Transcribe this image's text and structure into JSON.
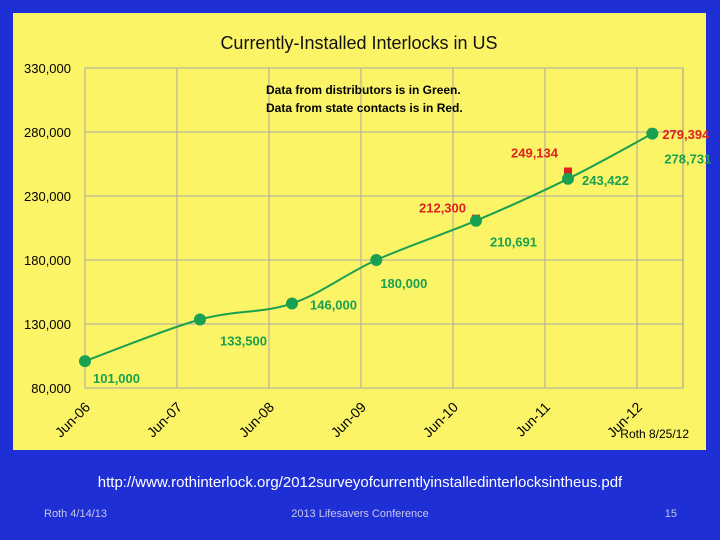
{
  "chart_data": {
    "type": "scatter",
    "title": "Currently-Installed Interlocks in US",
    "ylim": [
      80000,
      330000
    ],
    "y_ticks": [
      "330,000",
      "280,000",
      "230,000",
      "180,000",
      "130,000",
      "80,000"
    ],
    "y_tick_values": [
      330000,
      280000,
      230000,
      180000,
      130000,
      80000
    ],
    "x_ticks": [
      "Jun-06",
      "Jun-07",
      "Jun-08",
      "Jun-09",
      "Jun-10",
      "Jun-11",
      "Jun-12"
    ],
    "x_tick_values": [
      "2006-06",
      "2007-06",
      "2008-06",
      "2009-06",
      "2010-06",
      "2011-06",
      "2012-06"
    ],
    "xlim": [
      "2006-06",
      "2012-12"
    ],
    "grid": true,
    "series": [
      {
        "color": "#19a050",
        "points": [
          {
            "x": "2006-06",
            "y": 101000,
            "label": "101,000"
          },
          {
            "x": "2007-09",
            "y": 133500,
            "label": "133,500"
          },
          {
            "x": "2008-09",
            "y": 146000,
            "label": "146,000"
          },
          {
            "x": "2009-08",
            "y": 180000,
            "label": "180,000"
          },
          {
            "x": "2010-09",
            "y": 210691,
            "label": "210,691"
          },
          {
            "x": "2011-09",
            "y": 243422,
            "label": "243,422"
          },
          {
            "x": "2012-08",
            "y": 278731,
            "label": "278,731"
          }
        ]
      },
      {
        "color": "#e02020",
        "points": [
          {
            "x": "2010-09",
            "y": 212300,
            "label": "212,300"
          },
          {
            "x": "2011-09",
            "y": 249134,
            "label": "249,134"
          },
          {
            "x": "2012-08",
            "y": 279394,
            "label": "279,394"
          }
        ]
      }
    ],
    "annotations": [
      {
        "text": "Data from distributors is in Green.",
        "color": "#e02020"
      },
      {
        "text": "Data from state  contacts is in Red.",
        "color": "#e02020"
      }
    ],
    "credit": "Roth 8/25/12"
  },
  "source_url": "http://www.rothinterlock.org/2012surveyofcurrentlyinstalledinterlocksintheus.pdf",
  "footer": {
    "left": "Roth 4/14/13",
    "center": "2013 Lifesavers Conference",
    "right": "15"
  }
}
